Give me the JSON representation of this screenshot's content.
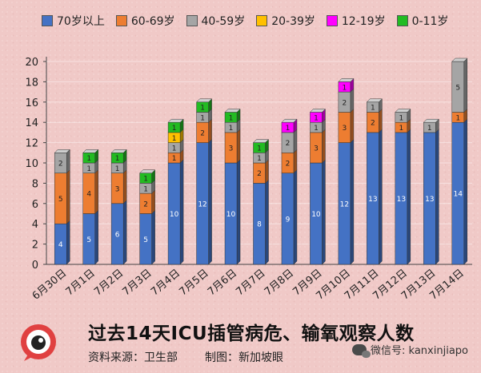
{
  "chart_data": {
    "type": "bar",
    "stacked": true,
    "categories": [
      "6月30日",
      "7月1日",
      "7月2日",
      "7月3日",
      "7月4日",
      "7月5日",
      "7月6日",
      "7月7日",
      "7月8日",
      "7月9日",
      "7月10日",
      "7月11日",
      "7月12日",
      "7月13日",
      "7月14日"
    ],
    "series": [
      {
        "name": "70岁以上",
        "color": "#4472c4",
        "values": [
          4,
          5,
          6,
          5,
          10,
          12,
          10,
          8,
          9,
          10,
          12,
          13,
          13,
          13,
          14
        ]
      },
      {
        "name": "60-69岁",
        "color": "#ed7d31",
        "values": [
          5,
          4,
          3,
          2,
          1,
          2,
          3,
          2,
          2,
          3,
          3,
          2,
          1,
          0,
          1
        ]
      },
      {
        "name": "40-59岁",
        "color": "#a5a5a5",
        "values": [
          2,
          1,
          1,
          1,
          1,
          1,
          1,
          1,
          2,
          1,
          2,
          1,
          1,
          1,
          5
        ]
      },
      {
        "name": "20-39岁",
        "color": "#ffc000",
        "values": [
          0,
          0,
          0,
          0,
          1,
          0,
          0,
          0,
          0,
          0,
          0,
          0,
          0,
          0,
          0
        ]
      },
      {
        "name": "12-19岁",
        "color": "#ff00ff",
        "values": [
          0,
          0,
          0,
          0,
          0,
          0,
          0,
          0,
          1,
          1,
          1,
          0,
          0,
          0,
          0
        ]
      },
      {
        "name": "0-11岁",
        "color": "#22bb22",
        "values": [
          0,
          1,
          1,
          1,
          1,
          1,
          1,
          1,
          0,
          0,
          0,
          0,
          0,
          0,
          0
        ]
      }
    ],
    "ylim": [
      0,
      20
    ],
    "yticks": [
      0,
      2,
      4,
      6,
      8,
      10,
      12,
      14,
      16,
      18,
      20
    ],
    "grid": true,
    "legend_position": "top",
    "title": "过去14天ICU插管病危、输氧观察人数"
  },
  "footer": {
    "title": "过去14天ICU插管病危、输氧观察人数",
    "source": "资料来源：卫生部",
    "made_by": "制图：新加坡眼",
    "wechat": "微信号: kanxinjiapo"
  }
}
